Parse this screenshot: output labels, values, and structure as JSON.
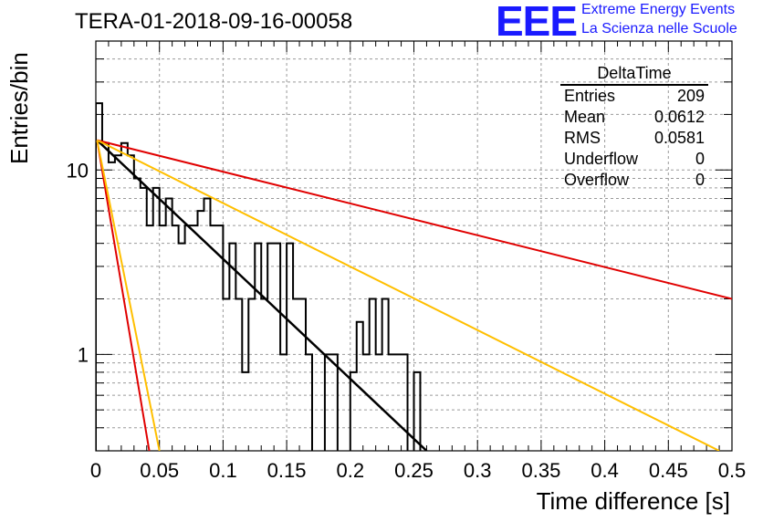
{
  "title": "TERA-01-2018-09-16-00058",
  "logo": {
    "text": "EEE",
    "line1": "Extreme Energy Events",
    "line2": "La Scienza nelle Scuole",
    "color": "#1a1aff"
  },
  "stats_box": {
    "name": "DeltaTime",
    "rows": [
      {
        "label": "Entries",
        "value": "209"
      },
      {
        "label": "Mean",
        "value": "0.0612"
      },
      {
        "label": "RMS",
        "value": "0.0581"
      },
      {
        "label": "Underflow",
        "value": "0"
      },
      {
        "label": "Overflow",
        "value": "0"
      }
    ]
  },
  "chart_data": {
    "type": "line",
    "title": "TERA-01-2018-09-16-00058",
    "xlabel": "Time difference [s]",
    "ylabel": "Entries/bin",
    "xlim": [
      0,
      0.5
    ],
    "ylim": [
      0.3,
      50
    ],
    "y_scale": "log",
    "grid": true,
    "x_ticks": [
      "0",
      "0.05",
      "0.1",
      "0.15",
      "0.2",
      "0.25",
      "0.3",
      "0.35",
      "0.4",
      "0.45",
      "0.5"
    ],
    "y_ticks": [
      "1",
      "10"
    ],
    "histogram": {
      "name": "DeltaTime",
      "color": "#000000",
      "bin_width": 0.005,
      "values": [
        23,
        14,
        11,
        12,
        14,
        12,
        9,
        8,
        5,
        8,
        5,
        7,
        5,
        4,
        5,
        5,
        6,
        7,
        5,
        5,
        2,
        4,
        2,
        0.8,
        2,
        4,
        2,
        4,
        4,
        1,
        4,
        2,
        2,
        1,
        0,
        0,
        1,
        1,
        0,
        0,
        0.8,
        1.5,
        1,
        2,
        1,
        2,
        1,
        1,
        1,
        0,
        0.8,
        0,
        0,
        0,
        0,
        0,
        0,
        0,
        0,
        0,
        0,
        0,
        0,
        0,
        0,
        0,
        0,
        0,
        0,
        0,
        0,
        0,
        0,
        0,
        0,
        0,
        0,
        0,
        0,
        0,
        0,
        0,
        0,
        0,
        0,
        0,
        0,
        0,
        0,
        0,
        0,
        0,
        0,
        0,
        0,
        0,
        0,
        0,
        0,
        0,
        0,
        0
      ]
    },
    "fits": [
      {
        "color": "#000000",
        "points": [
          [
            0.001,
            14.5
          ],
          [
            0.26,
            0.3
          ]
        ]
      },
      {
        "color": "#e00000",
        "points": [
          [
            0.001,
            14.5
          ],
          [
            0.5,
            2.0
          ]
        ]
      },
      {
        "color": "#ffbf00",
        "points": [
          [
            0.001,
            14.5
          ],
          [
            0.49,
            0.3
          ]
        ]
      },
      {
        "color": "#e00000",
        "points": [
          [
            0.001,
            14.5
          ],
          [
            0.042,
            0.3
          ]
        ]
      },
      {
        "color": "#ffbf00",
        "points": [
          [
            0.001,
            14.5
          ],
          [
            0.05,
            0.3
          ]
        ]
      }
    ]
  }
}
